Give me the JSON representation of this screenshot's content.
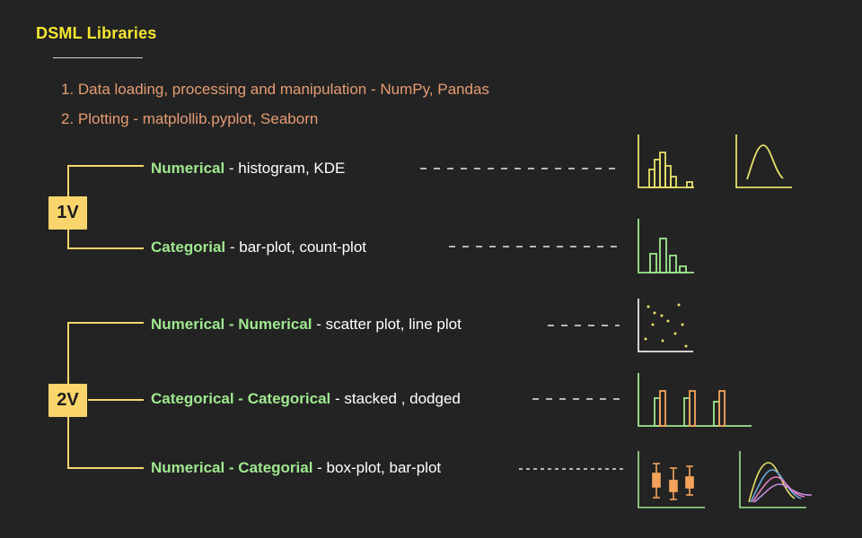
{
  "title": "DSML Libraries",
  "list": [
    {
      "text": "1. Data loading, processing and manipulation - NumPy, Pandas"
    },
    {
      "text": "2. Plotting - matplollib.pyplot, Seaborn"
    }
  ],
  "groups": [
    {
      "badge": "1V"
    },
    {
      "badge": "2V"
    }
  ],
  "rows": [
    {
      "type": "Numerical",
      "desc": " - histogram, KDE"
    },
    {
      "type": "Categorial",
      "desc": " - bar-plot, count-plot"
    },
    {
      "type": "Numerical - Numerical",
      "desc": " -  scatter plot, line plot"
    },
    {
      "type": "Categorical - Categorical",
      "desc": " - stacked , dodged"
    },
    {
      "type": "Numerical - Categorial",
      "desc": " - box-plot, bar-plot"
    }
  ],
  "colors": {
    "background": "#232323",
    "title": "#f7e733",
    "list_text": "#e59c72",
    "accent_green": "#9fe88f",
    "bracket": "#f9d56b",
    "orange": "#f5a35c",
    "yellow_plot": "#e8e06a"
  },
  "icons": [
    "histogram-icon",
    "kde-curve-icon",
    "bar-plot-icon",
    "scatter-plot-icon",
    "dodged-bar-icon",
    "box-plot-icon",
    "multi-kde-icon"
  ]
}
